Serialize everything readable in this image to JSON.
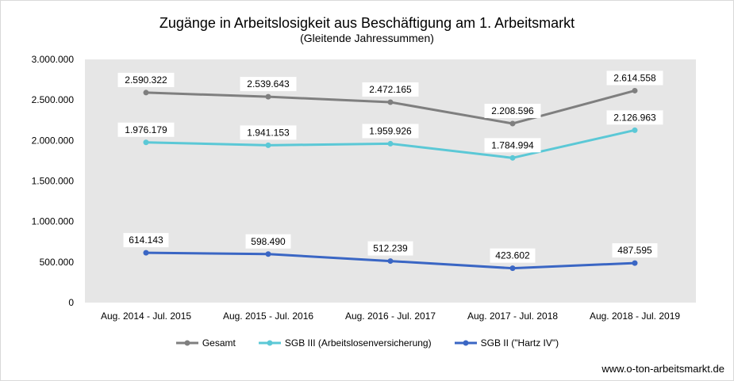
{
  "chart_data": {
    "type": "line",
    "title": "Zugänge in Arbeitslosigkeit aus Beschäftigung am 1. Arbeitsmarkt",
    "subtitle": "(Gleitende Jahressummen)",
    "xlabel": "",
    "ylabel": "",
    "ylim": [
      0,
      3000000
    ],
    "yticks": [
      "0",
      "500.000",
      "1.000.000",
      "1.500.000",
      "2.000.000",
      "2.500.000",
      "3.000.000"
    ],
    "categories": [
      "Aug. 2014 - Jul. 2015",
      "Aug. 2015 - Jul. 2016",
      "Aug. 2016 - Jul. 2017",
      "Aug. 2017 - Jul. 2018",
      "Aug. 2018 - Jul. 2019"
    ],
    "grid": false,
    "legend_position": "bottom",
    "series": [
      {
        "name": "Gesamt",
        "color": "#7f7f7f",
        "values": [
          2590322,
          2539643,
          2472165,
          2208596,
          2614558
        ],
        "labels": [
          "2.590.322",
          "2.539.643",
          "2.472.165",
          "2.208.596",
          "2.614.558"
        ]
      },
      {
        "name": "SGB III (Arbeitslosenversicherung)",
        "color": "#5bc8d6",
        "values": [
          1976179,
          1941153,
          1959926,
          1784994,
          2126963
        ],
        "labels": [
          "1.976.179",
          "1.941.153",
          "1.959.926",
          "1.784.994",
          "2.126.963"
        ]
      },
      {
        "name": "SGB II (\"Hartz IV\")",
        "color": "#3a66c4",
        "values": [
          614143,
          598490,
          512239,
          423602,
          487595
        ],
        "labels": [
          "614.143",
          "598.490",
          "512.239",
          "423.602",
          "487.595"
        ]
      }
    ],
    "plot_background": "#e6e6e6"
  },
  "source": "www.o-ton-arbeitsmarkt.de"
}
